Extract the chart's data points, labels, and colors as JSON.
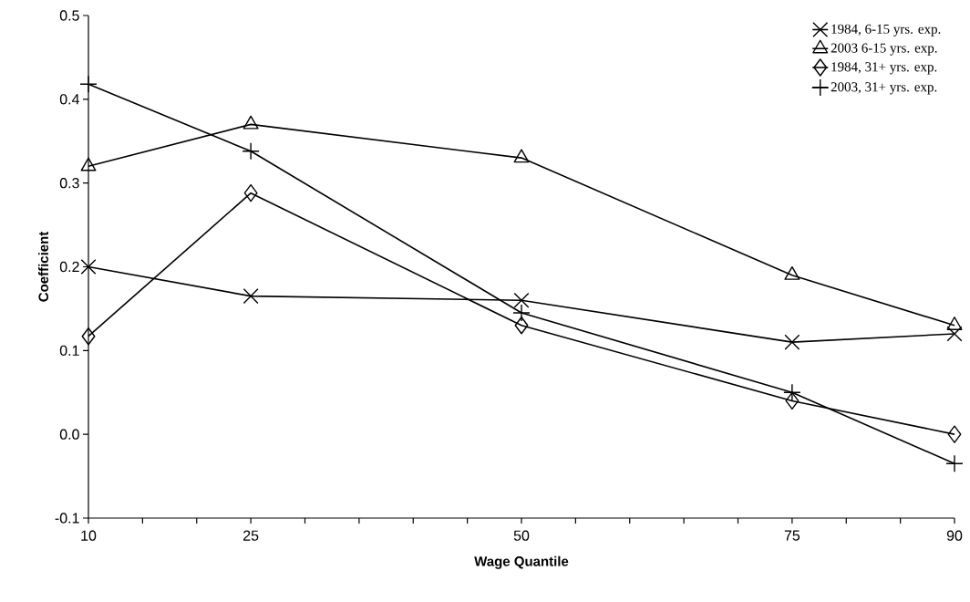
{
  "chart_data": {
    "type": "line",
    "xlabel": "Wage Quantile",
    "ylabel": "Coefficient",
    "x": [
      10,
      25,
      50,
      75,
      90
    ],
    "series": [
      {
        "name": "1984, 6-15 yrs. exp.",
        "color": "#000000",
        "marker": "cross",
        "values": [
          0.2,
          0.165,
          0.16,
          0.11,
          0.12
        ]
      },
      {
        "name": "2003 6-15 yrs. exp.",
        "color": "#000000",
        "marker": "triangle",
        "values": [
          0.32,
          0.37,
          0.33,
          0.19,
          0.13
        ]
      },
      {
        "name": "1984, 31+ yrs. exp.",
        "color": "#000000",
        "marker": "diamond",
        "values": [
          0.117,
          0.288,
          0.13,
          0.04,
          0.0
        ]
      },
      {
        "name": "2003, 31+ yrs. exp.",
        "color": "#000000",
        "marker": "cross",
        "values": [
          0.418,
          0.338,
          0.145,
          0.05,
          -0.035
        ]
      }
    ],
    "xlim": [
      10,
      90
    ],
    "ylim": [
      -0.1,
      0.5
    ],
    "xticks": [
      10,
      {
        "value": 15,
        "label": null
      },
      {
        "value": 20,
        "label": null
      },
      25,
      {
        "value": 30,
        "label": null
      },
      {
        "value": 35,
        "label": null
      },
      {
        "value": 40,
        "label": null
      },
      {
        "value": 45,
        "label": null
      },
      50,
      {
        "value": 55,
        "label": null
      },
      {
        "value": 60,
        "label": null
      },
      {
        "value": 65,
        "label": null
      },
      {
        "value": 70,
        "label": null
      },
      75,
      {
        "value": 80,
        "label": null
      },
      {
        "value": 85,
        "label": null
      },
      90
    ],
    "yticks": [
      -0.1,
      {
        "value": 0,
        "label": "0.0"
      },
      0.1,
      0.2,
      0.3,
      0.4,
      0.5
    ],
    "legend": "top right",
    "line_style": "solid"
  }
}
